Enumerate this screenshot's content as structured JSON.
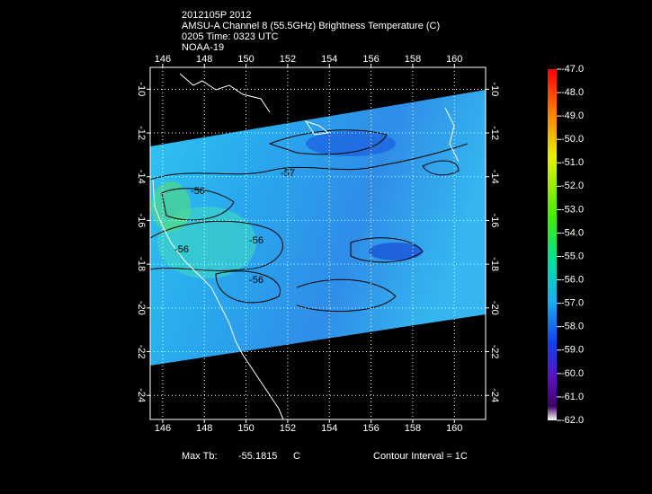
{
  "header": {
    "lines": [
      "2012105P 2012",
      "AMSU-A Channel 8 (55.5GHz) Brightness Temperature (C)",
      "0205 Time: 0323 UTC",
      "NOAA-19"
    ]
  },
  "map": {
    "xlim": [
      145.4,
      161.5
    ],
    "ylim": [
      -25.1,
      -9.0
    ],
    "xticks": [
      146,
      148,
      150,
      152,
      154,
      156,
      158,
      160
    ],
    "yticks": [
      -10,
      -12,
      -14,
      -16,
      -18,
      -20,
      -22,
      -24
    ],
    "contour_labels": [
      "-56",
      "-57",
      "-56",
      "-56",
      "-56"
    ]
  },
  "colorbar": {
    "ylim": [
      -62,
      -47
    ],
    "ticks": [
      {
        "value": -47,
        "label": "-47.0"
      },
      {
        "value": -48,
        "label": "-48.0"
      },
      {
        "value": -49,
        "label": "-49.0"
      },
      {
        "value": -50,
        "label": "-50.0"
      },
      {
        "value": -51,
        "label": "-51.0"
      },
      {
        "value": -52,
        "label": "-52.0"
      },
      {
        "value": -53,
        "label": "-53.0"
      },
      {
        "value": -54,
        "label": "-54.0"
      },
      {
        "value": -55,
        "label": "-55.0"
      },
      {
        "value": -56,
        "label": "-56.0"
      },
      {
        "value": -57,
        "label": "-57.0"
      },
      {
        "value": -58,
        "label": "-58.0"
      },
      {
        "value": -59,
        "label": "-59.0"
      },
      {
        "value": -60,
        "label": "-60.0"
      },
      {
        "value": -61,
        "label": "-61.0"
      },
      {
        "value": -62,
        "label": "-62.0"
      }
    ]
  },
  "footer": {
    "max_tb_label": "Max Tb:",
    "max_tb_value": -55.1815,
    "max_tb_unit": "C",
    "contour_interval": "Contour Interval = 1C"
  }
}
